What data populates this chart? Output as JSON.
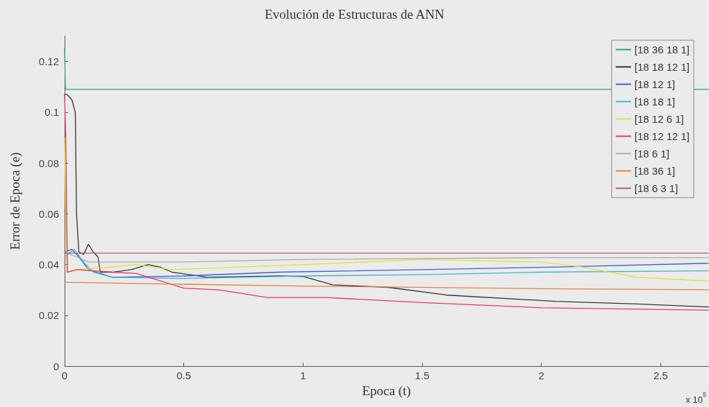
{
  "chart_data": {
    "type": "line",
    "title": "Evolución de Estructuras de ANN",
    "xlabel": "Epoca (t)",
    "ylabel": "Error de Epoca (e)",
    "xlim": [
      0,
      2.7
    ],
    "xticks": [
      0,
      0.5,
      1,
      1.5,
      2,
      2.5
    ],
    "ylim": [
      0,
      0.13
    ],
    "yticks": [
      0,
      0.02,
      0.04,
      0.06,
      0.08,
      0.1,
      0.12
    ],
    "grid": false,
    "legend": "top right",
    "marker": "none",
    "line_style": "solid",
    "annotations": [
      "x 10$^{5}$"
    ],
    "series": [
      {
        "name": "[18 36 18 1]",
        "color": "#2aa36b",
        "x": [
          0,
          0.003,
          0.006,
          1.0,
          2.0,
          2.7
        ],
        "values": [
          0.125,
          0.11,
          0.109,
          0.109,
          0.109,
          0.109
        ]
      },
      {
        "name": "[18 18 12 1]",
        "color": "#333333",
        "x": [
          0,
          0.01,
          0.03,
          0.045,
          0.05,
          0.06,
          0.08,
          0.1,
          0.12,
          0.14,
          0.15,
          0.2,
          0.28,
          0.35,
          0.4,
          0.45,
          0.6,
          0.9,
          1.0,
          1.125,
          1.36,
          1.6,
          2.06,
          2.4,
          2.7
        ],
        "values": [
          0.107,
          0.107,
          0.105,
          0.1,
          0.06,
          0.045,
          0.044,
          0.048,
          0.045,
          0.043,
          0.037,
          0.037,
          0.038,
          0.04,
          0.039,
          0.037,
          0.035,
          0.0355,
          0.0353,
          0.032,
          0.031,
          0.028,
          0.0255,
          0.0245,
          0.0233
        ]
      },
      {
        "name": "[18 12 1]",
        "color": "#3a5fcd",
        "x": [
          0,
          0.03,
          0.06,
          0.1,
          0.2,
          0.5,
          0.9,
          1.5,
          2.06,
          2.7
        ],
        "values": [
          0.045,
          0.046,
          0.043,
          0.038,
          0.035,
          0.0355,
          0.037,
          0.038,
          0.039,
          0.0405
        ]
      },
      {
        "name": "[18 18 1]",
        "color": "#3fb4d8",
        "x": [
          0,
          0.04,
          0.08,
          0.12,
          0.2,
          0.5,
          1.0,
          1.5,
          2.0,
          2.7
        ],
        "values": [
          0.043,
          0.046,
          0.041,
          0.037,
          0.035,
          0.0345,
          0.0355,
          0.036,
          0.037,
          0.0375
        ]
      },
      {
        "name": "[18 12 6 1]",
        "color": "#e0e030",
        "x": [
          0,
          0.005,
          0.01,
          0.05,
          0.2,
          0.3,
          0.45,
          1.0,
          1.5,
          2.0,
          2.17,
          2.4,
          2.7
        ],
        "values": [
          0.09,
          0.06,
          0.037,
          0.038,
          0.039,
          0.04,
          0.038,
          0.04,
          0.042,
          0.041,
          0.039,
          0.035,
          0.0335
        ]
      },
      {
        "name": "[18 12 12 1]",
        "color": "#e8365a",
        "x": [
          0,
          0.005,
          0.012,
          0.05,
          0.2,
          0.3,
          0.5,
          0.65,
          0.85,
          1.1,
          1.5,
          2.0,
          2.7
        ],
        "values": [
          0.107,
          0.09,
          0.037,
          0.038,
          0.037,
          0.0365,
          0.0307,
          0.03,
          0.027,
          0.027,
          0.025,
          0.023,
          0.022
        ]
      },
      {
        "name": "[18 6 1]",
        "color": "#aaaaaa",
        "x": [
          0,
          0.1,
          0.5,
          1.0,
          2.0,
          2.7
        ],
        "values": [
          0.045,
          0.041,
          0.041,
          0.042,
          0.0427,
          0.0427
        ]
      },
      {
        "name": "[18 36 1]",
        "color": "#e8803a",
        "x": [
          0,
          1.0,
          2.0,
          2.7
        ],
        "values": [
          0.033,
          0.0315,
          0.0305,
          0.0301
        ]
      },
      {
        "name": "[18 6 3 1]",
        "color": "#a0607a",
        "x": [
          0,
          1.0,
          2.0,
          2.7
        ],
        "values": [
          0.0445,
          0.0445,
          0.0445,
          0.0445
        ]
      }
    ]
  }
}
